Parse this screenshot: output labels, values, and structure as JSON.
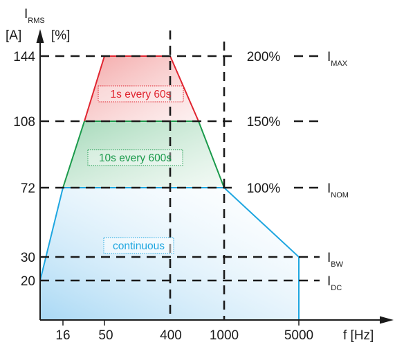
{
  "colors": {
    "red": "#e02530",
    "green": "#1a9a4b",
    "blue": "#1ea6e0",
    "axis": "#1a1a1a"
  },
  "chart_data": {
    "type": "area",
    "y_axis": {
      "symbol": "I",
      "symbol_sub": "RMS",
      "unit_label": "[A]",
      "percent_label": "[%]",
      "ticks": [
        144,
        108,
        72,
        30,
        20
      ]
    },
    "x_axis": {
      "label": "f [Hz]",
      "ticks": [
        16,
        50,
        400,
        1000,
        5000
      ]
    },
    "percent_levels": [
      {
        "label": "200%",
        "value": 144
      },
      {
        "label": "150%",
        "value": 108
      },
      {
        "label": "100%",
        "value": 72
      }
    ],
    "current_levels": [
      {
        "symbol": "I",
        "sub": "MAX",
        "value": 144
      },
      {
        "symbol": "I",
        "sub": "NOM",
        "value": 72
      },
      {
        "symbol": "I",
        "sub": "BW",
        "value": 30
      },
      {
        "symbol": "I",
        "sub": "DC",
        "value": 20
      }
    ],
    "series": [
      {
        "name": "1s every 60s",
        "color": "#e02530",
        "points": [
          [
            30,
            108
          ],
          [
            50,
            144
          ],
          [
            400,
            144
          ],
          [
            700,
            108
          ]
        ]
      },
      {
        "name": "10s every 600s",
        "color": "#1a9a4b",
        "points": [
          [
            16,
            72
          ],
          [
            30,
            108
          ],
          [
            700,
            108
          ],
          [
            1000,
            72
          ]
        ]
      },
      {
        "name": "continuous",
        "color": "#1ea6e0",
        "points": [
          [
            0,
            20
          ],
          [
            16,
            72
          ],
          [
            1000,
            72
          ],
          [
            5000,
            30
          ],
          [
            5000,
            0
          ]
        ]
      }
    ],
    "dashed_verticals": [
      400,
      1000
    ]
  }
}
